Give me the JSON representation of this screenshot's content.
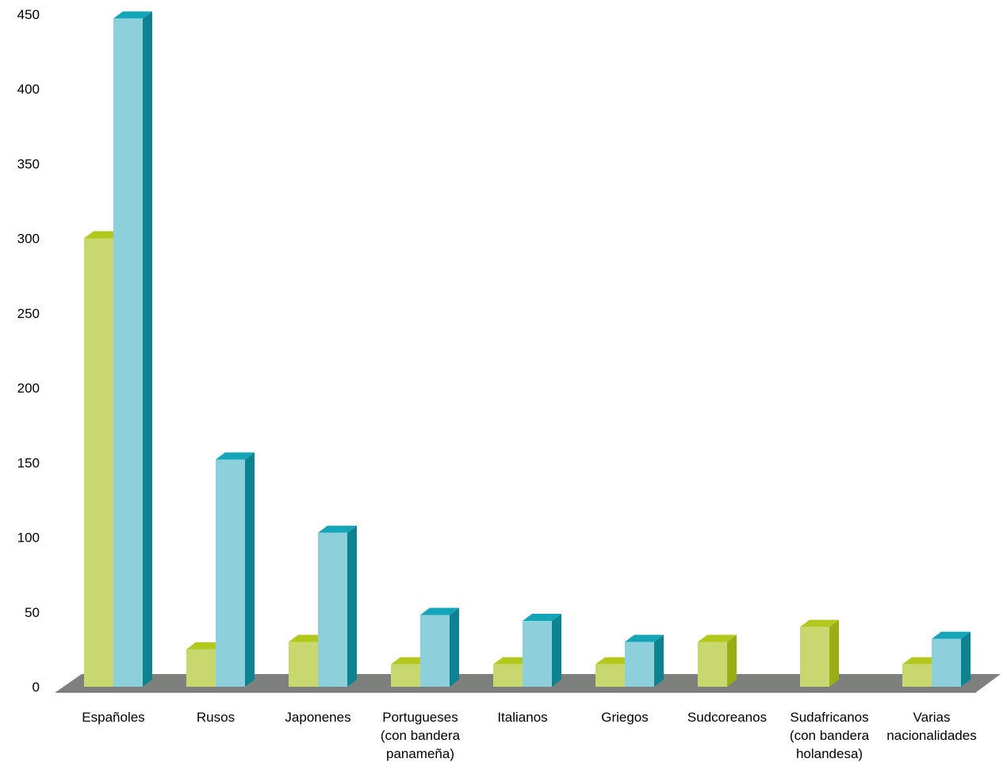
{
  "chart_data": {
    "type": "bar",
    "categories": [
      [
        "Españoles"
      ],
      [
        "Rusos"
      ],
      [
        "Japonenes"
      ],
      [
        "Portugueses",
        "(con bandera",
        "panameña)"
      ],
      [
        "Italianos"
      ],
      [
        "Griegos"
      ],
      [
        "Sudcoreanos"
      ],
      [
        "Sudafricanos",
        "(con bandera",
        "holandesa)"
      ],
      [
        "Varias",
        "nacionalidades"
      ]
    ],
    "series": [
      {
        "values": [
          300,
          25,
          30,
          15,
          15,
          15,
          30,
          40,
          15
        ]
      },
      {
        "values": [
          447,
          152,
          103,
          48,
          44,
          30,
          null,
          null,
          32
        ]
      }
    ],
    "ylim": [
      0,
      450
    ],
    "yticks": [
      "0",
      "50",
      "100",
      "150",
      "200",
      "250",
      "300",
      "350",
      "400",
      "450"
    ],
    "grid": false,
    "legend": "none",
    "colors": {
      "series0_front": "#c9d86e",
      "series0_top": "#b2c81c",
      "series0_side": "#9aad12",
      "series1_front": "#8dcfda",
      "series1_top": "#14a6b8",
      "series1_side": "#0d8391",
      "floor": "#7d807c",
      "floor_edge": "#616460"
    }
  }
}
